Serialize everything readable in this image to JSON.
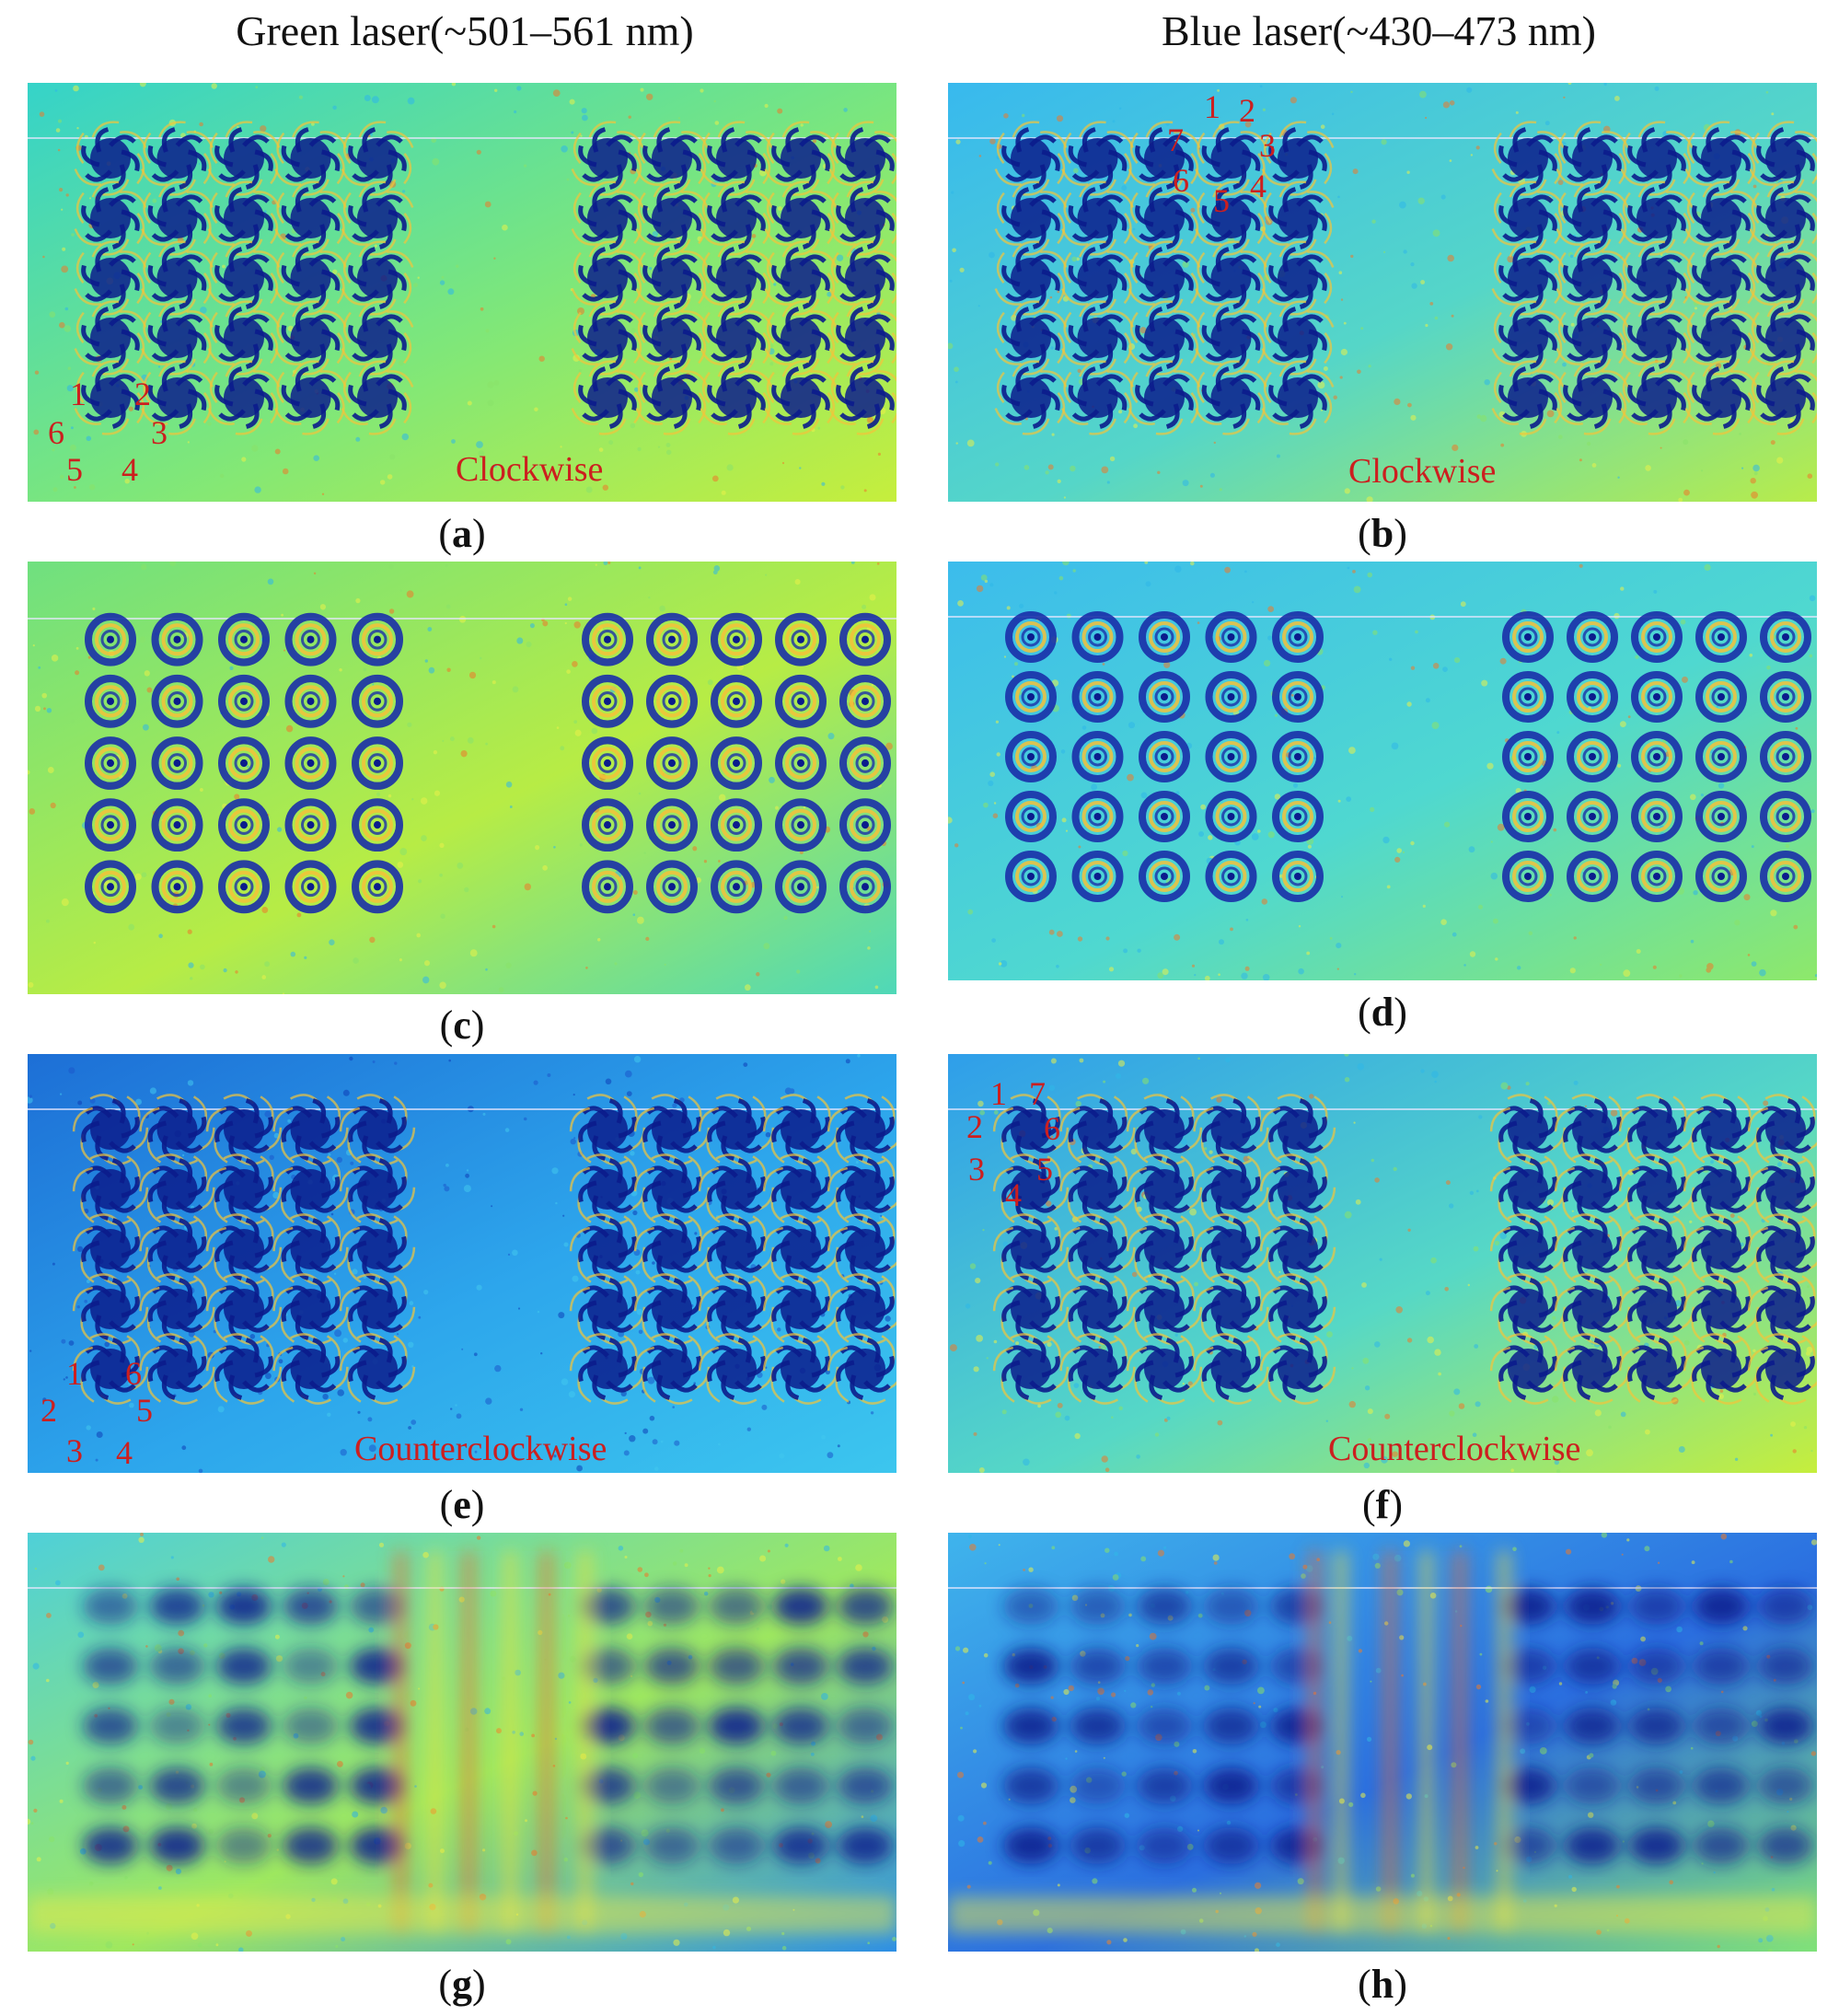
{
  "titles": {
    "left": "Green laser(~501–561 nm)",
    "right": "Blue laser(~430–473 nm)"
  },
  "captions": [
    "a",
    "b",
    "c",
    "d",
    "e",
    "f",
    "g",
    "h"
  ],
  "annotations": {
    "clockwise": "Clockwise",
    "counterclockwise": "Counterclockwise",
    "a_numbers": [
      "1",
      "2",
      "3",
      "4",
      "5",
      "6"
    ],
    "b_numbers": [
      "1",
      "2",
      "3",
      "4",
      "5",
      "6",
      "7"
    ],
    "e_numbers": [
      "1",
      "2",
      "3",
      "4",
      "5",
      "6"
    ],
    "f_numbers": [
      "1",
      "2",
      "3",
      "4",
      "5",
      "6",
      "7"
    ]
  },
  "colors": {
    "annotation_red": "#cc1f1f",
    "green_map": [
      "#2fd7d8",
      "#6fe38a",
      "#c8ef3a"
    ],
    "blue_map": [
      "#3fb6ec",
      "#1f63d8",
      "#0b1f8a"
    ]
  },
  "panel_styles": {
    "a": "pinwheel",
    "b": "pinwheel",
    "c": "ring",
    "d": "ring",
    "e": "pinwheel",
    "f": "pinwheel",
    "g": "blur",
    "h": "blur"
  }
}
